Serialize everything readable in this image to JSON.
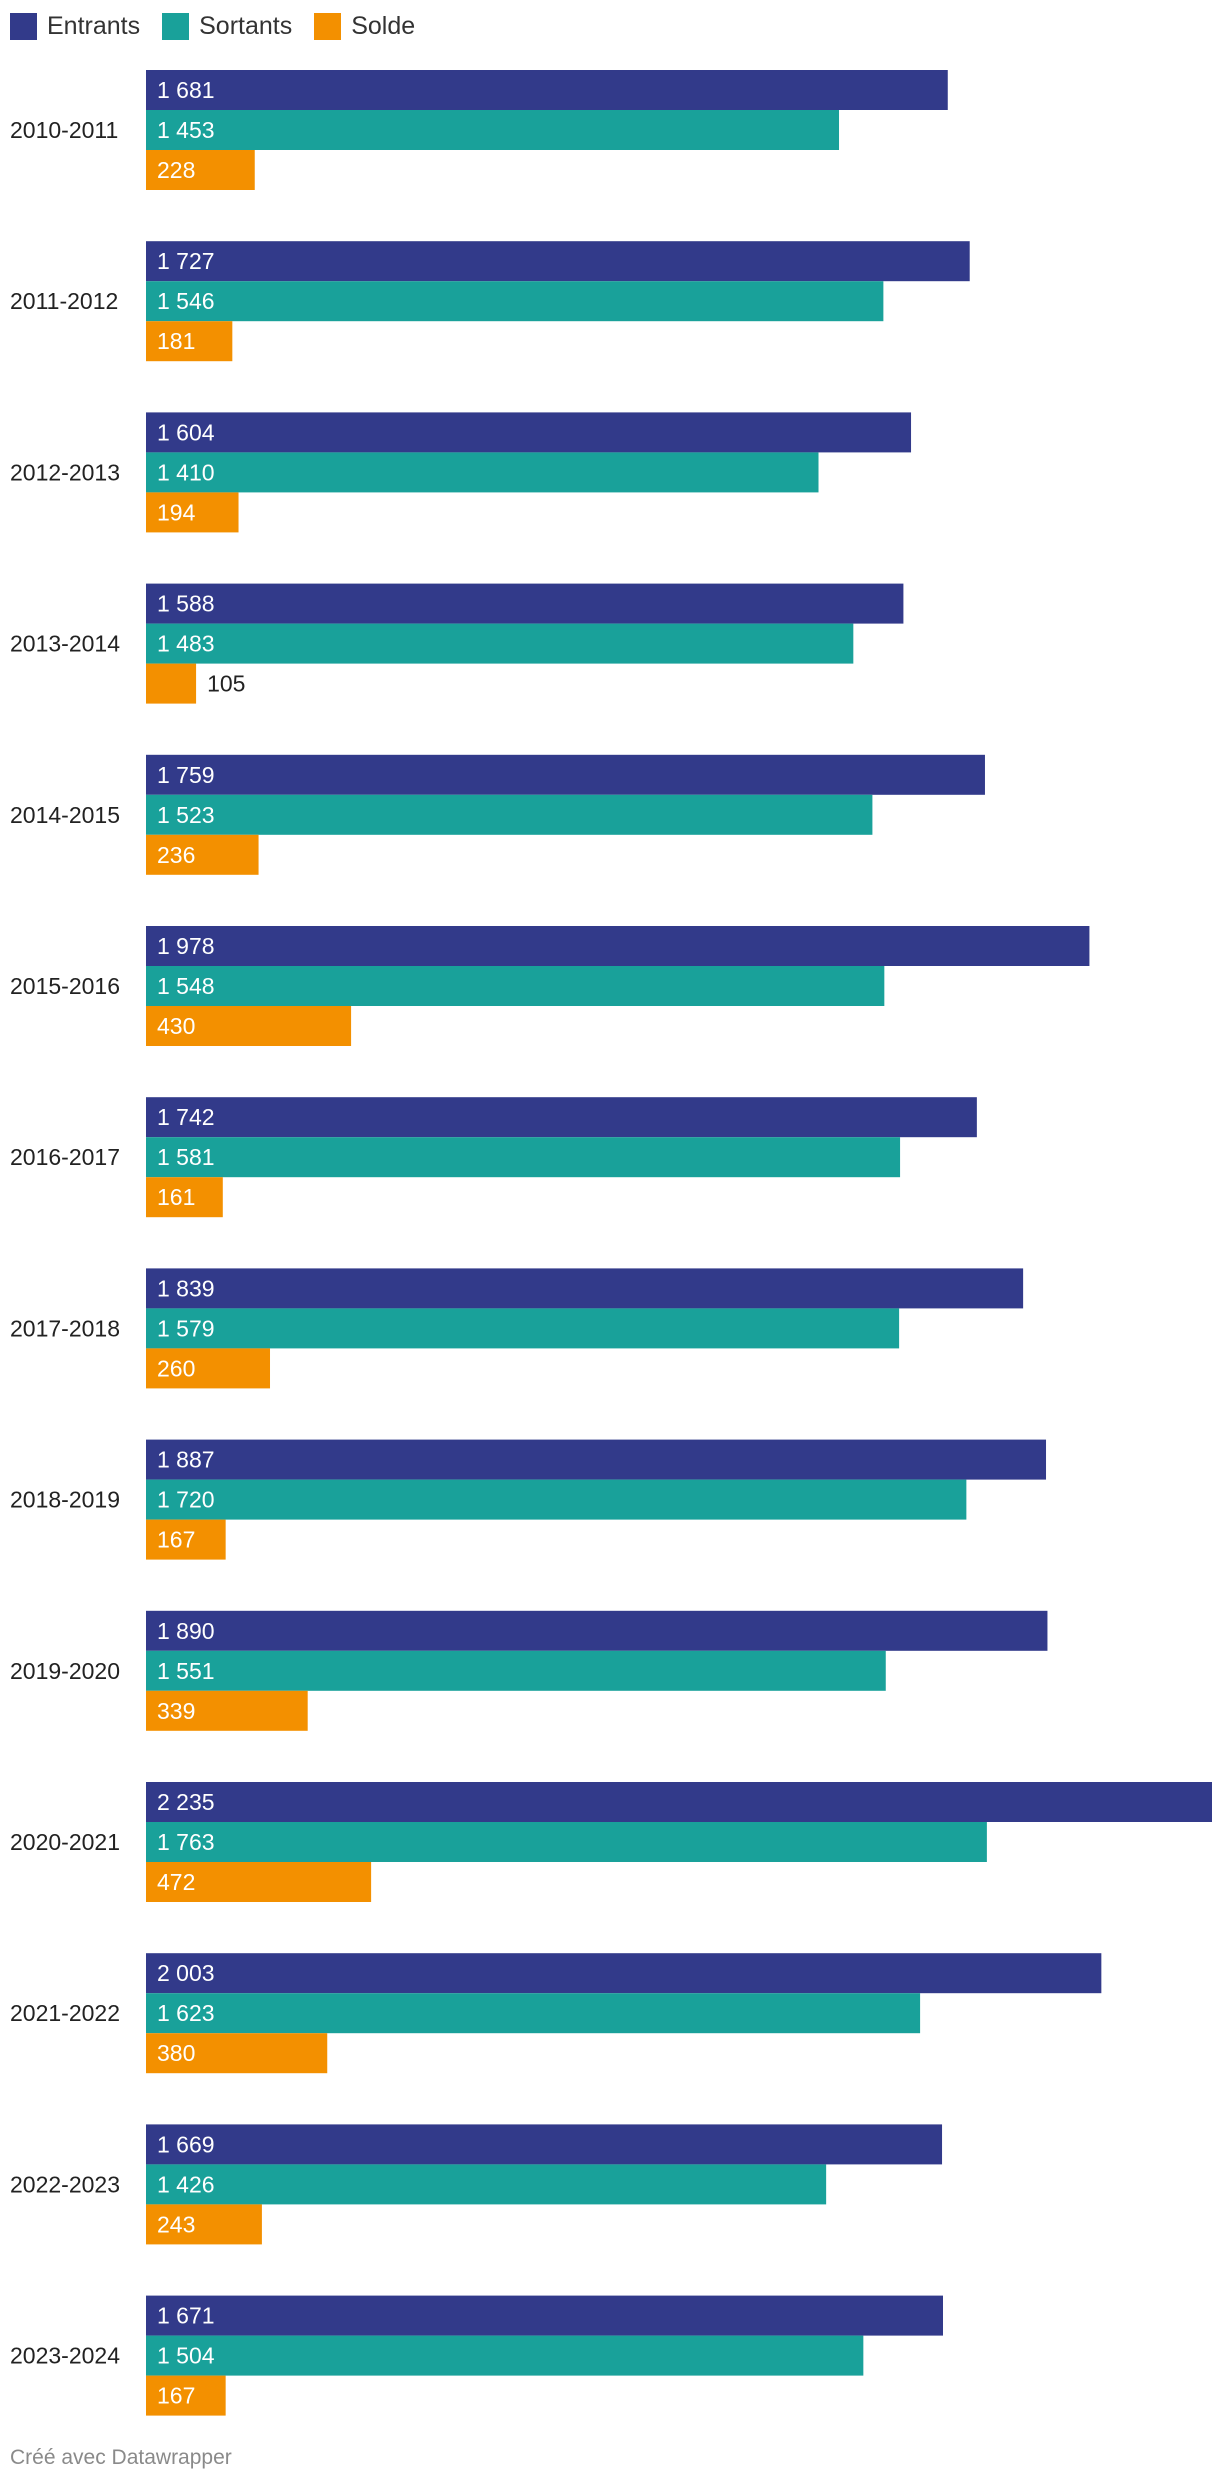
{
  "legend": {
    "entrants": "Entrants",
    "sortants": "Sortants",
    "solde": "Solde"
  },
  "colors": {
    "entrants": "#323a8a",
    "sortants": "#19a19a",
    "solde": "#f39000",
    "label_inside": "#ffffff",
    "label_outside": "#222222",
    "category_label": "#222222"
  },
  "chart_data": {
    "type": "bar",
    "orientation": "horizontal",
    "grouped": true,
    "title": "",
    "xlabel": "",
    "ylabel": "",
    "xlim": [
      0,
      2235
    ],
    "grid": false,
    "legend_position": "top-left",
    "categories": [
      "2010-2011",
      "2011-2012",
      "2012-2013",
      "2013-2014",
      "2014-2015",
      "2015-2016",
      "2016-2017",
      "2017-2018",
      "2018-2019",
      "2019-2020",
      "2020-2021",
      "2021-2022",
      "2022-2023",
      "2023-2024"
    ],
    "series": [
      {
        "key": "entrants",
        "name": "Entrants",
        "values": [
          1681,
          1727,
          1604,
          1588,
          1759,
          1978,
          1742,
          1839,
          1887,
          1890,
          2235,
          2003,
          1669,
          1671
        ],
        "labels": [
          "1 681",
          "1 727",
          "1 604",
          "1 588",
          "1 759",
          "1 978",
          "1 742",
          "1 839",
          "1 887",
          "1 890",
          "2 235",
          "2 003",
          "1 669",
          "1 671"
        ]
      },
      {
        "key": "sortants",
        "name": "Sortants",
        "values": [
          1453,
          1546,
          1410,
          1483,
          1523,
          1548,
          1581,
          1579,
          1720,
          1551,
          1763,
          1623,
          1426,
          1504
        ],
        "labels": [
          "1 453",
          "1 546",
          "1 410",
          "1 483",
          "1 523",
          "1 548",
          "1 581",
          "1 579",
          "1 720",
          "1 551",
          "1 763",
          "1 623",
          "1 426",
          "1 504"
        ]
      },
      {
        "key": "solde",
        "name": "Solde",
        "values": [
          228,
          181,
          194,
          105,
          236,
          430,
          161,
          260,
          167,
          339,
          472,
          380,
          243,
          167
        ],
        "labels": [
          "228",
          "181",
          "194",
          "105",
          "236",
          "430",
          "161",
          "260",
          "167",
          "339",
          "472",
          "380",
          "243",
          "167"
        ]
      }
    ]
  },
  "footer": {
    "credit": "Créé avec Datawrapper"
  }
}
